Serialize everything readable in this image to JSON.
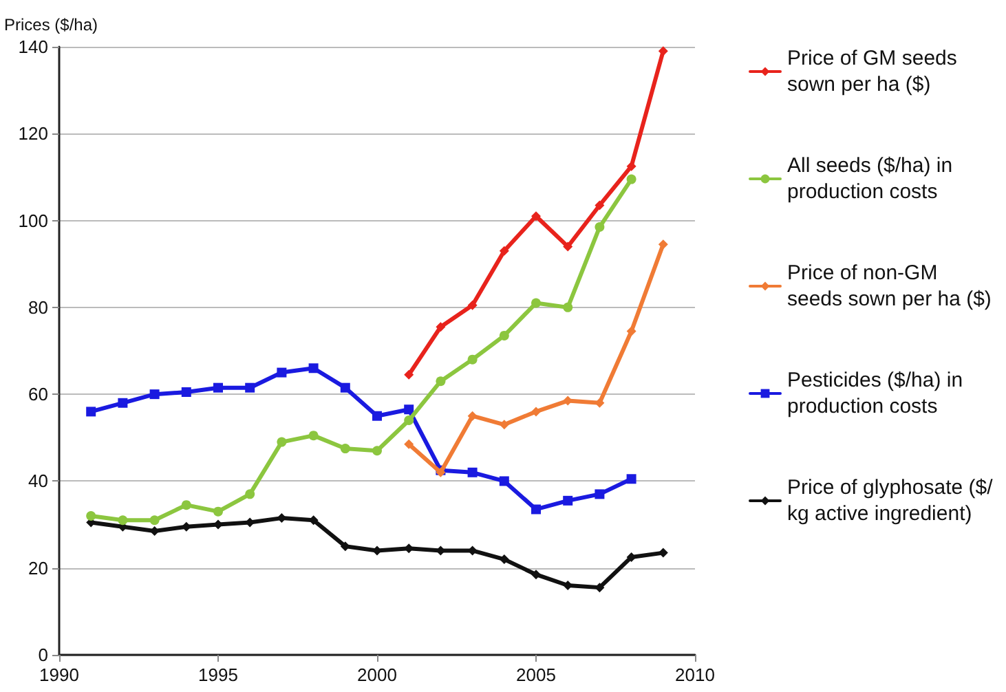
{
  "chart_data": {
    "type": "line",
    "ylabel": "Prices ($/ha)",
    "xlim": [
      1990,
      2010
    ],
    "xticks": [
      1990,
      1995,
      2000,
      2005,
      2010
    ],
    "ylim": [
      0,
      140
    ],
    "yticks": [
      0,
      20,
      40,
      60,
      80,
      100,
      120,
      140
    ],
    "grid": "y",
    "legend": "right",
    "line_style": "solid",
    "series": [
      {
        "name": "Price of GM seeds sown per ha ($)",
        "color": "#e8231c",
        "marker": "diamond",
        "x": [
          2001,
          2002,
          2003,
          2004,
          2005,
          2006,
          2007,
          2008,
          2009
        ],
        "values": [
          64.5,
          75.5,
          80.5,
          93,
          101,
          94,
          103.5,
          112.5,
          139
        ]
      },
      {
        "name": "All seeds ($/ha) in production costs",
        "color": "#8cc63f",
        "marker": "circle",
        "x": [
          1991,
          1992,
          1993,
          1994,
          1995,
          1996,
          1997,
          1998,
          1999,
          2000,
          2001,
          2002,
          2003,
          2004,
          2005,
          2006,
          2007,
          2008
        ],
        "values": [
          32,
          31,
          31,
          34.5,
          33,
          37,
          49,
          50.5,
          47.5,
          47,
          54,
          63,
          68,
          73.5,
          81,
          80,
          98.5,
          109.5
        ]
      },
      {
        "name": "Price of non-GM seeds sown per ha ($)",
        "color": "#f07b35",
        "marker": "diamond",
        "x": [
          2001,
          2002,
          2003,
          2004,
          2005,
          2006,
          2007,
          2008,
          2009
        ],
        "values": [
          48.5,
          42,
          55,
          53,
          56,
          58.5,
          58,
          74.5,
          94.5
        ]
      },
      {
        "name": "Pesticides ($/ha) in production costs",
        "color": "#1a1ae0",
        "marker": "square",
        "x": [
          1991,
          1992,
          1993,
          1994,
          1995,
          1996,
          1997,
          1998,
          1999,
          2000,
          2001,
          2002,
          2003,
          2004,
          2005,
          2006,
          2007,
          2008
        ],
        "values": [
          56,
          58,
          60,
          60.5,
          61.5,
          61.5,
          65,
          66,
          61.5,
          55,
          56.5,
          42.5,
          42,
          40,
          33.5,
          35.5,
          37,
          40.5
        ]
      },
      {
        "name": "Price of glyphosate ($/kg active ingredient)",
        "color": "#111111",
        "marker": "diamond",
        "x": [
          1991,
          1992,
          1993,
          1994,
          1995,
          1996,
          1997,
          1998,
          1999,
          2000,
          2001,
          2002,
          2003,
          2004,
          2005,
          2006,
          2007,
          2008,
          2009
        ],
        "values": [
          30.5,
          29.5,
          28.5,
          29.5,
          30,
          30.5,
          31.5,
          31,
          25,
          24,
          24.5,
          24,
          24,
          22,
          18.5,
          16,
          15.5,
          22.5,
          23.5
        ]
      }
    ]
  }
}
